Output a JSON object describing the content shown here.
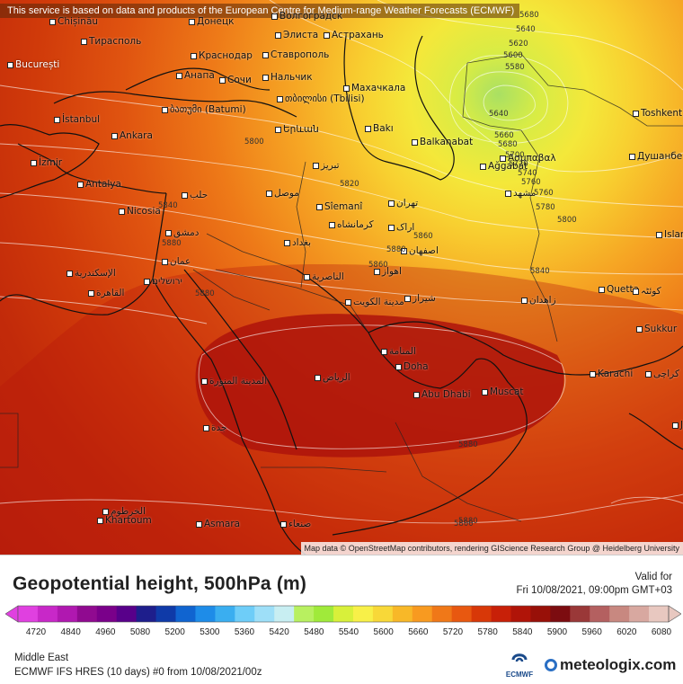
{
  "notice": "This service is based on data and products of the European Centre for Medium-range Weather Forecasts (ECMWF)",
  "attribution": "Map data © OpenStreetMap contributors, rendering GIScience Research Group @ Heidelberg University",
  "legend": {
    "title": "Geopotential height, 500hPa (m)",
    "valid_label": "Valid for",
    "valid_time": "Fri 10/08/2021, 09:00pm GMT+03",
    "ticks": [
      "4720",
      "4840",
      "4960",
      "5080",
      "5200",
      "5300",
      "5360",
      "5420",
      "5480",
      "5540",
      "5600",
      "5660",
      "5720",
      "5780",
      "5840",
      "5900",
      "5960",
      "6020",
      "6080"
    ],
    "colors": [
      "#e040e0",
      "#c828c8",
      "#b018b0",
      "#900a90",
      "#7a008a",
      "#58008a",
      "#1e1e8c",
      "#0f3aa8",
      "#1064d0",
      "#1e8ce8",
      "#3aaef0",
      "#6ecdf8",
      "#9edff8",
      "#c8eef2",
      "#b8f060",
      "#a0ea3a",
      "#d8f03a",
      "#f8f048",
      "#f8d838",
      "#f8b828",
      "#f89a20",
      "#f07818",
      "#e85810",
      "#d83808",
      "#c82008",
      "#b01408",
      "#981008",
      "#7c0c10",
      "#9a3838",
      "#b46060",
      "#c88880",
      "#d8a8a0",
      "#e8c8c0"
    ],
    "region": "Middle East",
    "model": "ECMWF IFS HRES (10 days) #0 from  10/08/2021/00z",
    "ecmwf_text": "ECMWF",
    "brand": "meteologix.com"
  },
  "cities": [
    {
      "name": "Chișinău",
      "light": true
    },
    {
      "name": "Донецк"
    },
    {
      "name": "Волгоградск"
    },
    {
      "name": "Тирасполь"
    },
    {
      "name": "Элиста"
    },
    {
      "name": "Астрахань"
    },
    {
      "name": "București",
      "light": true
    },
    {
      "name": "Краснодар"
    },
    {
      "name": "Ставрополь"
    },
    {
      "name": "Анапа"
    },
    {
      "name": "Сочи"
    },
    {
      "name": "Нальчик"
    },
    {
      "name": "თბილისი (Tbilisi)"
    },
    {
      "name": "ბათუმი (Batumi)"
    },
    {
      "name": "Махачкала"
    },
    {
      "name": "İstanbul"
    },
    {
      "name": "Bakı"
    },
    {
      "name": "Երևան"
    },
    {
      "name": "Balkanabat"
    },
    {
      "name": "Ankara"
    },
    {
      "name": "İzmir"
    },
    {
      "name": "Ασμπαβαλ"
    },
    {
      "name": "Ağgabat"
    },
    {
      "name": "Toshkent"
    },
    {
      "name": "Душанбе"
    },
    {
      "name": "Antalya"
    },
    {
      "name": "تبریز"
    },
    {
      "name": "حلب"
    },
    {
      "name": "موصل"
    },
    {
      "name": "مشهد"
    },
    {
      "name": "Nicosia"
    },
    {
      "name": "Sîemanî"
    },
    {
      "name": "تهران"
    },
    {
      "name": "دمشق"
    },
    {
      "name": "کرمانشاه"
    },
    {
      "name": "اراک"
    },
    {
      "name": "بغداد"
    },
    {
      "name": "Islam"
    },
    {
      "name": "عمان"
    },
    {
      "name": "الإسكندرية"
    },
    {
      "name": "اصفهان"
    },
    {
      "name": "ירושלים"
    },
    {
      "name": "اهواز"
    },
    {
      "name": "القاهرة"
    },
    {
      "name": "الناصرية"
    },
    {
      "name": "Quetta"
    },
    {
      "name": "کوئٹہ"
    },
    {
      "name": "مدينة الكويت"
    },
    {
      "name": "شیراز"
    },
    {
      "name": "زاهدان"
    },
    {
      "name": "Sukkur"
    },
    {
      "name": "المنامة"
    },
    {
      "name": "Doha"
    },
    {
      "name": "Karachi"
    },
    {
      "name": "کراچی"
    },
    {
      "name": "المدينة المنورة"
    },
    {
      "name": "الرياض"
    },
    {
      "name": "Abu Dhabi"
    },
    {
      "name": "Muscat"
    },
    {
      "name": "جدة"
    },
    {
      "name": "Ja"
    },
    {
      "name": "الخرطوم"
    },
    {
      "name": "Khartoum"
    },
    {
      "name": "Asmara"
    },
    {
      "name": "صنعاء"
    }
  ],
  "contour_labels": [
    "5680",
    "5640",
    "5620",
    "5600",
    "5580",
    "5640",
    "5660",
    "5680",
    "5700",
    "5720",
    "5740",
    "5760",
    "5760",
    "5780",
    "5800",
    "5820",
    "5840",
    "5860",
    "5880",
    "5860",
    "5880",
    "5840",
    "5880",
    "5800",
    "5880",
    "5800",
    "5880"
  ]
}
